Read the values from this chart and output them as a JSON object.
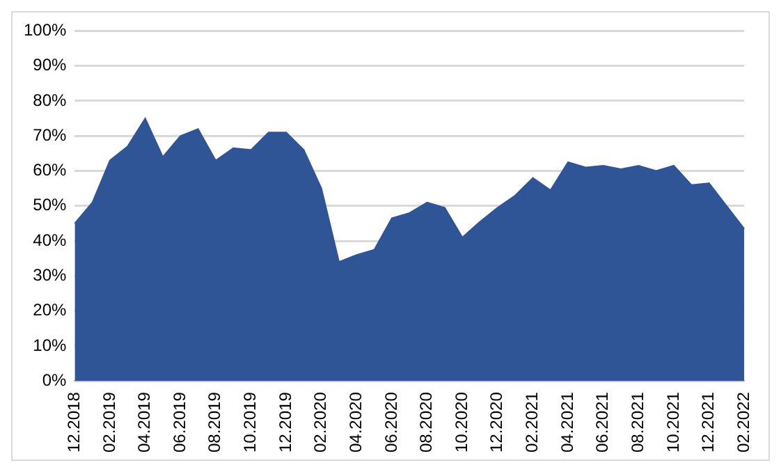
{
  "chart_data": {
    "type": "area",
    "categories": [
      "12.2018",
      null,
      "02.2019",
      null,
      "04.2019",
      null,
      "06.2019",
      null,
      "08.2019",
      null,
      "10.2019",
      null,
      "12.2019",
      null,
      "02.2020",
      null,
      "04.2020",
      null,
      "06.2020",
      null,
      "08.2020",
      null,
      "10.2020",
      null,
      "12.2020",
      null,
      "02.2021",
      null,
      "04.2021",
      null,
      "06.2021",
      null,
      "08.2021",
      null,
      "10.2021",
      null,
      "12.2021",
      null,
      "02.2022"
    ],
    "values": [
      45,
      51,
      63,
      67,
      75,
      64,
      70,
      72,
      63,
      66.5,
      66,
      71,
      71,
      66,
      55,
      34,
      36,
      37.5,
      46.5,
      48,
      51,
      49.5,
      41,
      45.5,
      49.5,
      53,
      58,
      54.5,
      62.5,
      61,
      61.5,
      60.5,
      61.5,
      60,
      61.5,
      56,
      56.5,
      50,
      43.5
    ],
    "color": "#2f5597",
    "ylim": [
      0,
      100
    ],
    "yticks": [
      {
        "value": 0,
        "label": "0%"
      },
      {
        "value": 10,
        "label": "10%"
      },
      {
        "value": 20,
        "label": "20%"
      },
      {
        "value": 30,
        "label": "30%"
      },
      {
        "value": 40,
        "label": "40%"
      },
      {
        "value": 50,
        "label": "50%"
      },
      {
        "value": 60,
        "label": "60%"
      },
      {
        "value": 70,
        "label": "70%"
      },
      {
        "value": 80,
        "label": "80%"
      },
      {
        "value": 90,
        "label": "90%"
      },
      {
        "value": 100,
        "label": "100%"
      }
    ],
    "grid": "y"
  }
}
